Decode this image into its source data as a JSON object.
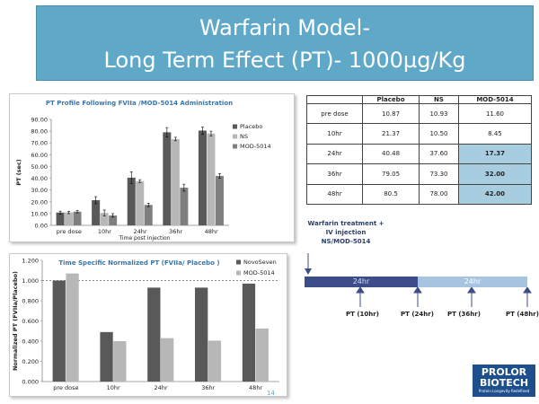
{
  "slide": {
    "title_line1": "Warfarin Model-",
    "title_line2": "Long Term Effect (PT)- 1000µg/Kg",
    "page_number": "14"
  },
  "table": {
    "headers": [
      "",
      "Placebo",
      "NS",
      "MOD-5014"
    ],
    "rows": [
      {
        "label": "pre dose",
        "placebo": "10.87",
        "ns": "10.93",
        "mod": "11.60",
        "highlight": false
      },
      {
        "label": "10hr",
        "placebo": "21.37",
        "ns": "10.50",
        "mod": "8.45",
        "highlight": false
      },
      {
        "label": "24hr",
        "placebo": "40.48",
        "ns": "37.60",
        "mod": "17.37",
        "highlight": true
      },
      {
        "label": "36hr",
        "placebo": "79.05",
        "ns": "73.30",
        "mod": "32.00",
        "highlight": true
      },
      {
        "label": "48hr",
        "placebo": "80.5",
        "ns": "78.00",
        "mod": "42.00",
        "highlight": true
      }
    ]
  },
  "timeline": {
    "label_line1": "Warfarin treatment +",
    "label_line2": "IV injection",
    "label_line3": "NS/MOD-5014",
    "segment1": "24hr",
    "segment2": "24hr",
    "points": [
      "PT (10hr)",
      "PT (24hr)",
      "PT (36hr)",
      "PT (48hr)"
    ],
    "color_dark": "#3d4d8a",
    "color_light": "#a6c4e0"
  },
  "logo": {
    "line1": "PROLOR",
    "line2": "BIOTECH",
    "tagline": "Protein Longevity Redefined"
  },
  "chart_data": [
    {
      "type": "bar",
      "title": "PT Profile Following FVIIa /MOD-5014 Administration",
      "xlabel": "Time post injection",
      "ylabel": "PT (sec)",
      "categories": [
        "pre dose",
        "10hr",
        "24hr",
        "36hr",
        "48hr"
      ],
      "ylim": [
        0,
        90
      ],
      "yticks": [
        "0.00",
        "10.00",
        "20.00",
        "30.00",
        "40.00",
        "50.00",
        "60.00",
        "70.00",
        "80.00",
        "90.00"
      ],
      "legend_position": "right",
      "series": [
        {
          "name": "Placebo",
          "values": [
            10.87,
            21.37,
            40.48,
            79.05,
            80.5
          ],
          "errors": [
            1.2,
            3.0,
            5.0,
            4.0,
            3.0
          ],
          "color": "#595959"
        },
        {
          "name": "NS",
          "values": [
            10.93,
            10.5,
            37.6,
            73.3,
            78.0
          ],
          "errors": [
            1.0,
            2.5,
            1.2,
            1.5,
            2.0
          ],
          "color": "#b7b7b7"
        },
        {
          "name": "MOD-5014",
          "values": [
            11.6,
            8.45,
            17.37,
            32.0,
            42.0
          ],
          "errors": [
            1.0,
            1.5,
            1.5,
            3.0,
            2.0
          ],
          "color": "#7f7f7f"
        }
      ]
    },
    {
      "type": "bar",
      "title": "Time Specific Normalized PT (FVIIa/ Placebo )",
      "xlabel": "",
      "ylabel": "Normalized PT (FVIIa/Placebo)",
      "categories": [
        "pre dose",
        "10hr",
        "24hr",
        "36hr",
        "48hr"
      ],
      "ylim": [
        0,
        1.2
      ],
      "yticks": [
        "0.000",
        "0.200",
        "0.400",
        "0.600",
        "0.800",
        "1.000",
        "1.200"
      ],
      "reference_line": 1.0,
      "legend_position": "top-right",
      "series": [
        {
          "name": "NovoSeven",
          "values": [
            1.0,
            0.49,
            0.93,
            0.93,
            0.97
          ],
          "color": "#595959"
        },
        {
          "name": "MOD-5014",
          "values": [
            1.07,
            0.4,
            0.43,
            0.405,
            0.525
          ],
          "color": "#b7b7b7"
        }
      ]
    }
  ]
}
